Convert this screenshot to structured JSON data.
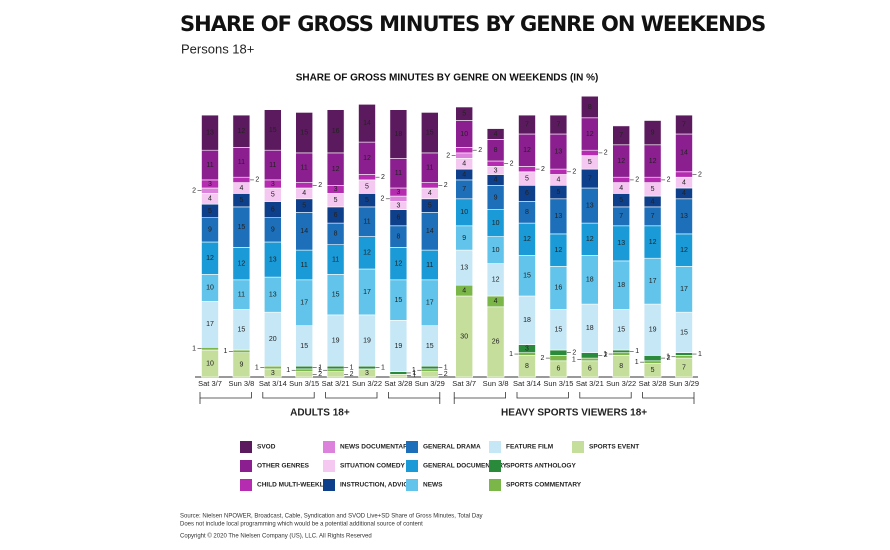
{
  "chart_data": {
    "type": "stacked-bar",
    "title": "SHARE OF GROSS MINUTES BY GENRE ON WEEKENDS",
    "subtitle": "Persons 18+",
    "chart_title": "SHARE OF GROSS MINUTES BY GENRE ON WEEKENDS (IN %)",
    "group_labels": [
      "ADULTS 18+",
      "HEAVY SPORTS VIEWERS 18+"
    ],
    "categories": [
      "Sat 3/7",
      "Sun 3/8",
      "Sat 3/14",
      "Sun 3/15",
      "Sat 3/21",
      "Sun 3/22",
      "Sat 3/28",
      "Sun 3/29",
      "Sat 3/7",
      "Sun 3/8",
      "Sat 3/14",
      "Sun 3/15",
      "Sat 3/21",
      "Sun 3/22",
      "Sat 3/28",
      "Sun 3/29"
    ],
    "series": [
      {
        "name": "SVOD",
        "color": "#5c1a5e",
        "values": [
          13,
          12,
          15,
          15,
          16,
          14,
          18,
          15,
          5,
          4,
          7,
          7,
          8,
          7,
          9,
          7
        ]
      },
      {
        "name": "OTHER GENRES",
        "color": "#8b1f8f",
        "values": [
          11,
          11,
          11,
          11,
          12,
          12,
          11,
          11,
          10,
          8,
          12,
          13,
          12,
          12,
          12,
          14
        ]
      },
      {
        "name": "CHILD MULTI-WEEKLY",
        "color": "#b52cb0",
        "values": [
          3,
          2,
          3,
          2,
          3,
          2,
          3,
          2,
          2,
          2,
          2,
          2,
          2,
          2,
          2,
          2
        ]
      },
      {
        "name": "NEWS DOCUMENTARY",
        "color": "#dc82dc",
        "values": [
          2,
          null,
          null,
          null,
          null,
          null,
          2,
          null,
          2,
          null,
          null,
          null,
          null,
          null,
          null,
          null
        ]
      },
      {
        "name": "SITUATION COMEDY",
        "color": "#f4c8f0",
        "values": [
          4,
          4,
          5,
          4,
          5,
          5,
          3,
          4,
          4,
          3,
          5,
          4,
          5,
          4,
          5,
          4
        ]
      },
      {
        "name": "INSTRUCTION, ADVICE",
        "color": "#0e3f8a",
        "values": [
          5,
          5,
          6,
          5,
          6,
          5,
          6,
          5,
          4,
          4,
          6,
          5,
          7,
          5,
          4,
          4
        ]
      },
      {
        "name": "GENERAL DRAMA",
        "color": "#1d6fba",
        "values": [
          9,
          15,
          9,
          14,
          8,
          11,
          8,
          14,
          7,
          9,
          8,
          13,
          13,
          7,
          7,
          13
        ]
      },
      {
        "name": "GENERAL DOCUMENTARY",
        "color": "#1a9ad6",
        "values": [
          12,
          12,
          13,
          11,
          11,
          12,
          12,
          11,
          10,
          10,
          12,
          12,
          12,
          13,
          12,
          12
        ]
      },
      {
        "name": "NEWS",
        "color": "#62c4ea",
        "values": [
          10,
          11,
          13,
          17,
          15,
          17,
          15,
          17,
          9,
          10,
          15,
          16,
          18,
          18,
          17,
          17
        ]
      },
      {
        "name": "FEATURE FILM",
        "color": "#c5e7f6",
        "values": [
          17,
          15,
          20,
          15,
          19,
          19,
          19,
          15,
          13,
          12,
          18,
          15,
          18,
          15,
          19,
          15
        ]
      },
      {
        "name": "SPORTS ANTHOLOGY",
        "color": "#2a8a3b",
        "values": [
          null,
          null,
          null,
          1,
          1,
          1,
          1,
          1,
          null,
          null,
          3,
          2,
          2,
          1,
          2,
          1
        ]
      },
      {
        "name": "SPORTS COMMENTARY",
        "color": "#7ab648",
        "values": [
          1,
          1,
          1,
          1,
          1,
          null,
          null,
          1,
          4,
          4,
          1,
          2,
          1,
          1,
          1,
          1
        ]
      },
      {
        "name": "SPORTS EVENT",
        "color": "#c6de9c",
        "values": [
          10,
          9,
          3,
          2,
          2,
          3,
          1,
          2,
          30,
          26,
          8,
          6,
          6,
          8,
          5,
          7
        ]
      }
    ],
    "source": [
      "Source: Nielsen NPOWER, Broadcast, Cable, Syndication and SVOD Live+SD Share of Gross Minutes, Total Day",
      "Does not include local programming which would be a potential additional source of content"
    ],
    "copyright": "Copyright © 2020 The Nielsen Company (US), LLC. All Rights Reserved"
  }
}
